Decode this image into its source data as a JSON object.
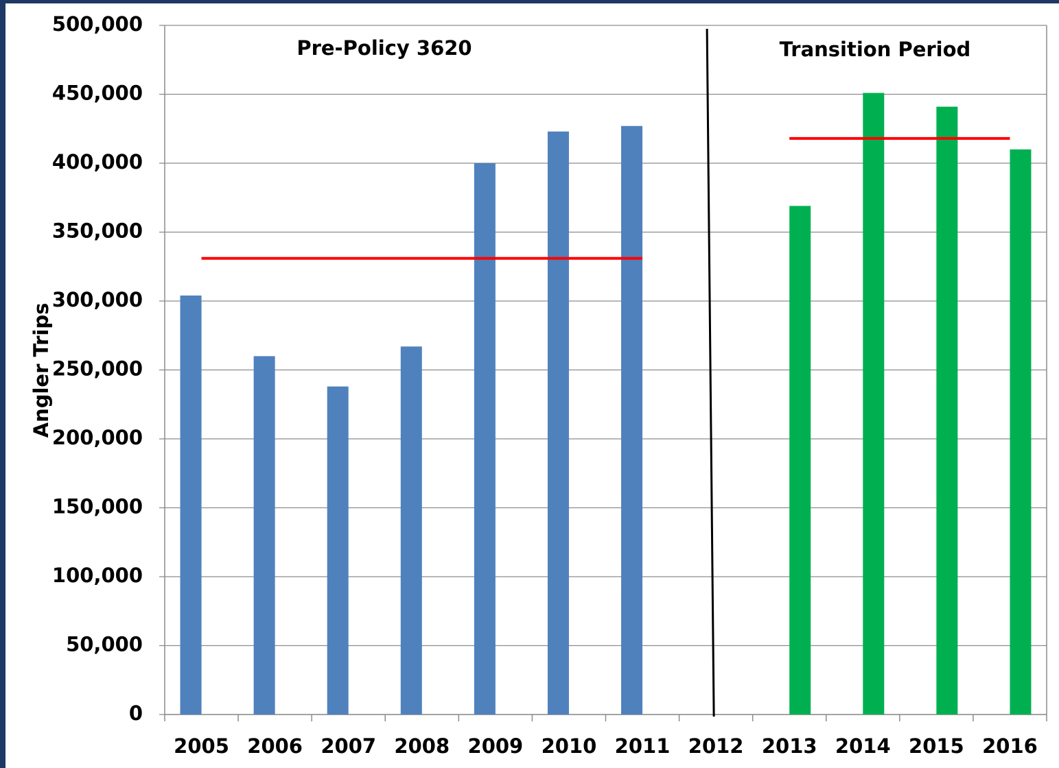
{
  "chart_data": {
    "type": "bar",
    "y_axis_label": "Angler Trips",
    "categories": [
      "2005",
      "2006",
      "2007",
      "2008",
      "2009",
      "2010",
      "2011",
      "2012",
      "2013",
      "2014",
      "2015",
      "2016"
    ],
    "series": [
      {
        "color": "#4f81bd",
        "values": [
          304000,
          260000,
          238000,
          267000,
          400000,
          423000,
          427000,
          null,
          null,
          null,
          null,
          null
        ]
      },
      {
        "color": "#00b050",
        "values": [
          null,
          null,
          null,
          null,
          null,
          null,
          null,
          null,
          369000,
          451000,
          441000,
          410000
        ]
      }
    ],
    "reference_lines": [
      {
        "value": 331000,
        "from": "2005",
        "to": "2011",
        "color": "#ff0000"
      },
      {
        "value": 418000,
        "from": "2013",
        "to": "2016",
        "color": "#ff0000"
      }
    ],
    "annotations": [
      "Pre-Policy 3620",
      "Transition Period"
    ],
    "ylim": [
      0,
      500000
    ],
    "yticks": [
      0,
      {
        "value": 50000,
        "label": "50,000"
      },
      {
        "value": 100000,
        "label": "100,000"
      },
      {
        "value": 150000,
        "label": "150,000"
      },
      {
        "value": 200000,
        "label": "200,000"
      },
      {
        "value": 250000,
        "label": "250,000"
      },
      {
        "value": 300000,
        "label": "300,000"
      },
      {
        "value": 350000,
        "label": "350,000"
      },
      {
        "value": 400000,
        "label": "400,000"
      },
      {
        "value": 450000,
        "label": "450,000"
      },
      {
        "value": 500000,
        "label": "500,000"
      }
    ],
    "grid": true
  }
}
